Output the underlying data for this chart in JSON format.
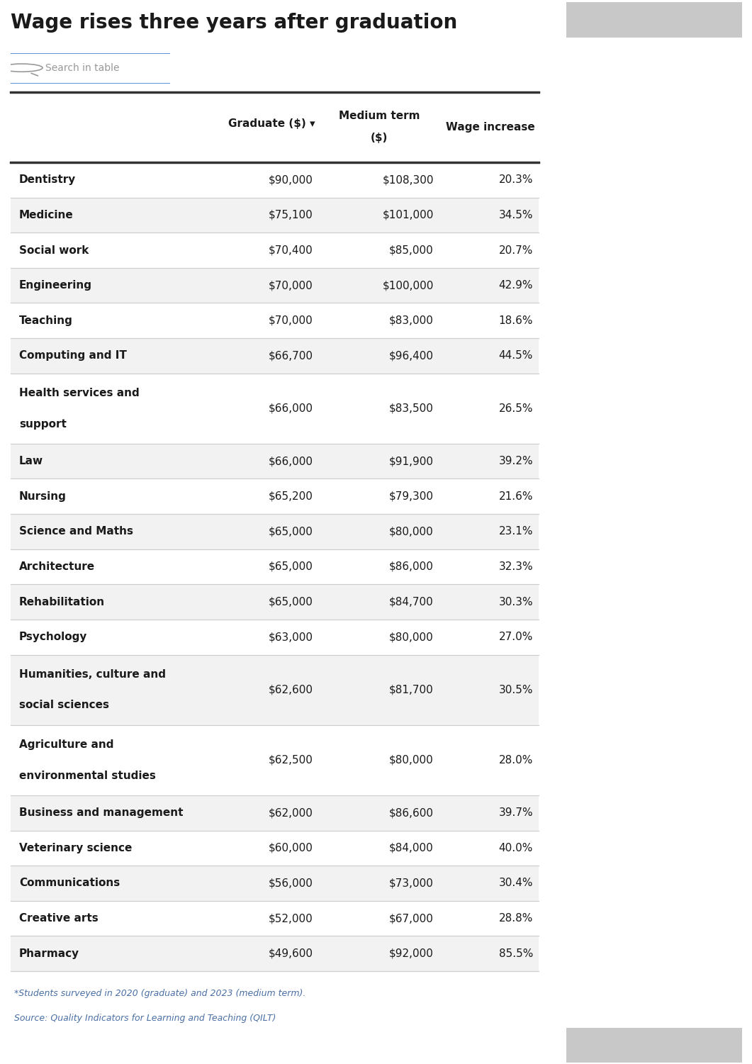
{
  "title": "Wage rises three years after graduation",
  "search_placeholder": "Search in table",
  "rows": [
    [
      "Dentistry",
      "$90,000",
      "$108,300",
      "20.3%"
    ],
    [
      "Medicine",
      "$75,100",
      "$101,000",
      "34.5%"
    ],
    [
      "Social work",
      "$70,400",
      "$85,000",
      "20.7%"
    ],
    [
      "Engineering",
      "$70,000",
      "$100,000",
      "42.9%"
    ],
    [
      "Teaching",
      "$70,000",
      "$83,000",
      "18.6%"
    ],
    [
      "Computing and IT",
      "$66,700",
      "$96,400",
      "44.5%"
    ],
    [
      "Health services and\nsupport",
      "$66,000",
      "$83,500",
      "26.5%"
    ],
    [
      "Law",
      "$66,000",
      "$91,900",
      "39.2%"
    ],
    [
      "Nursing",
      "$65,200",
      "$79,300",
      "21.6%"
    ],
    [
      "Science and Maths",
      "$65,000",
      "$80,000",
      "23.1%"
    ],
    [
      "Architecture",
      "$65,000",
      "$86,000",
      "32.3%"
    ],
    [
      "Rehabilitation",
      "$65,000",
      "$84,700",
      "30.3%"
    ],
    [
      "Psychology",
      "$63,000",
      "$80,000",
      "27.0%"
    ],
    [
      "Humanities, culture and\nsocial sciences",
      "$62,600",
      "$81,700",
      "30.5%"
    ],
    [
      "Agriculture and\nenvironmental studies",
      "$62,500",
      "$80,000",
      "28.0%"
    ],
    [
      "Business and management",
      "$62,000",
      "$86,600",
      "39.7%"
    ],
    [
      "Veterinary science",
      "$60,000",
      "$84,000",
      "40.0%"
    ],
    [
      "Communications",
      "$56,000",
      "$73,000",
      "30.4%"
    ],
    [
      "Creative arts",
      "$52,000",
      "$67,000",
      "28.8%"
    ],
    [
      "Pharmacy",
      "$49,600",
      "$92,000",
      "85.5%"
    ]
  ],
  "footnote": "*Students surveyed in 2020 (graduate) and 2023 (medium term).",
  "source": "Source: Quality Indicators for Learning and Teaching (QILT)",
  "bg_color": "#ffffff",
  "scrollbar_color": "#c8c8c8",
  "row_color_even": "#f2f2f2",
  "row_color_odd": "#ffffff",
  "title_color": "#1a1a1a",
  "header_text_color": "#1a1a1a",
  "cell_text_color": "#1a1a1a",
  "footnote_color": "#4a6fa5",
  "border_color": "#cccccc",
  "thick_border_color": "#333333",
  "search_border_color": "#3a7bd5",
  "search_text_color": "#999999",
  "search_icon_color": "#999999",
  "fig_width": 10.61,
  "fig_height": 15.01,
  "dpi": 100
}
